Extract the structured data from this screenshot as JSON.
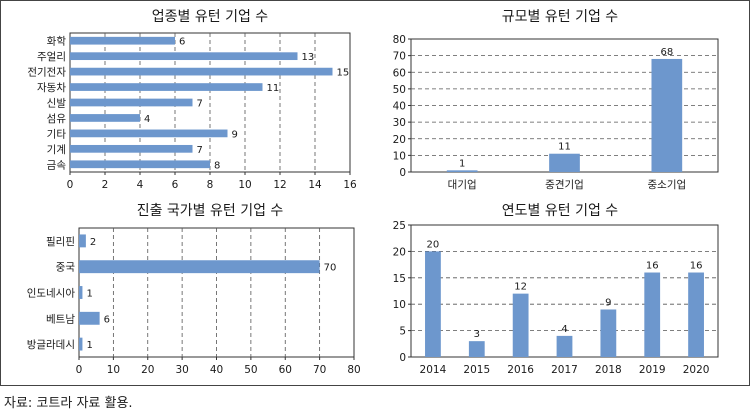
{
  "bar_color": "#6d97cd",
  "source": "자료: 코트라 자료 활용.",
  "chart_data": [
    {
      "type": "bar",
      "orientation": "horizontal",
      "title": "업종별 유턴 기업 수",
      "categories": [
        "화학",
        "주얼리",
        "전기전자",
        "자동차",
        "신발",
        "섬유",
        "기타",
        "기계",
        "금속"
      ],
      "values": [
        6,
        13,
        15,
        11,
        7,
        4,
        9,
        7,
        8
      ],
      "xlim": [
        0,
        16
      ],
      "xticks": [
        "0",
        "2",
        "4",
        "6",
        "8",
        "10",
        "12",
        "14",
        "16"
      ],
      "grid": "vertical dashed"
    },
    {
      "type": "bar",
      "orientation": "vertical",
      "title": "규모별 유턴 기업 수",
      "categories": [
        "대기업",
        "중견기업",
        "중소기업"
      ],
      "values": [
        1,
        11,
        68
      ],
      "ylim": [
        0,
        80
      ],
      "yticks": [
        "0",
        "10",
        "20",
        "30",
        "40",
        "50",
        "60",
        "70",
        "80"
      ],
      "grid": "horizontal dashed"
    },
    {
      "type": "bar",
      "orientation": "horizontal",
      "title": "진출 국가별 유턴 기업 수",
      "categories": [
        "필리핀",
        "중국",
        "인도네시아",
        "베트남",
        "방글라데시"
      ],
      "values": [
        2,
        70,
        1,
        6,
        1
      ],
      "xlim": [
        0,
        80
      ],
      "xticks": [
        "0",
        "10",
        "20",
        "30",
        "40",
        "50",
        "60",
        "70",
        "80"
      ],
      "grid": "vertical dashed"
    },
    {
      "type": "bar",
      "orientation": "vertical",
      "title": "연도별 유턴 기업 수",
      "categories": [
        "2014",
        "2015",
        "2016",
        "2017",
        "2018",
        "2019",
        "2020"
      ],
      "values": [
        20,
        3,
        12,
        4,
        9,
        16,
        16
      ],
      "ylim": [
        0,
        25
      ],
      "yticks": [
        "0",
        "5",
        "10",
        "15",
        "20",
        "25"
      ],
      "grid": "horizontal dashed"
    }
  ]
}
